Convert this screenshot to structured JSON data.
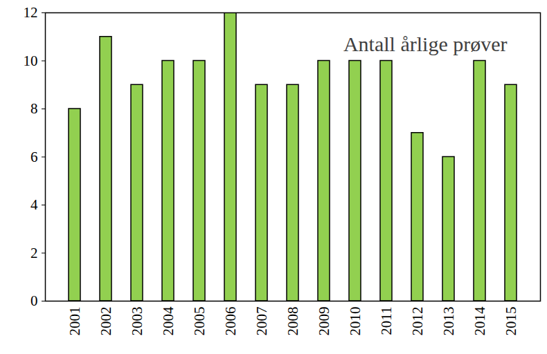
{
  "chart_data": {
    "type": "bar",
    "title": "Antall årlige prøver",
    "categories": [
      "2001",
      "2002",
      "2003",
      "2004",
      "2005",
      "2006",
      "2007",
      "2008",
      "2009",
      "2010",
      "2011",
      "2012",
      "2013",
      "2014",
      "2015"
    ],
    "values": [
      8,
      11,
      9,
      10,
      10,
      12,
      9,
      9,
      10,
      10,
      10,
      7,
      6,
      10,
      9
    ],
    "color": "#92d050",
    "ylim": [
      0,
      12
    ],
    "yticks": [
      0,
      2,
      4,
      6,
      8,
      10,
      12
    ],
    "grid": false
  }
}
